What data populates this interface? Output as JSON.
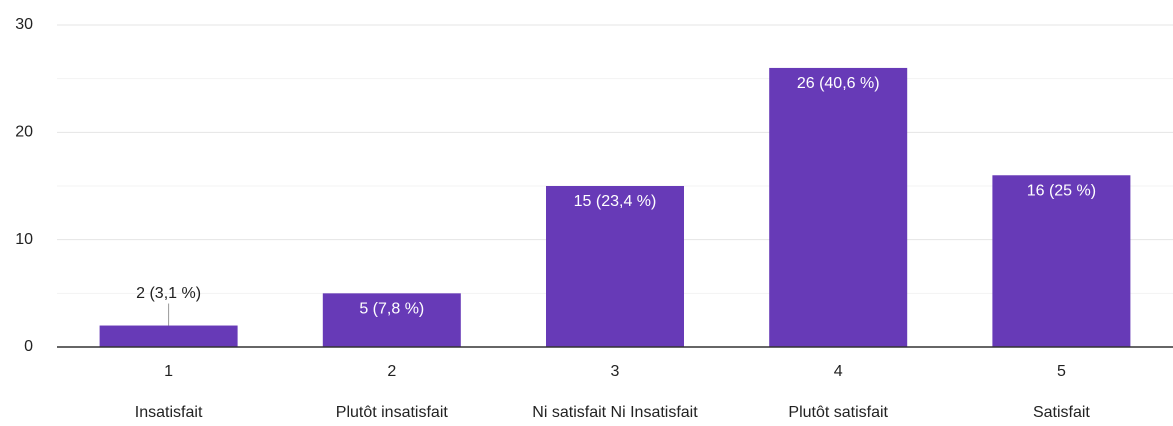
{
  "chart_data": {
    "type": "bar",
    "categories": [
      "1",
      "2",
      "3",
      "4",
      "5"
    ],
    "category_labels": [
      "Insatisfait",
      "Plutôt insatisfait",
      "Ni satisfait Ni Insatisfait",
      "Plutôt satisfait",
      "Satisfait"
    ],
    "values": [
      2,
      5,
      15,
      26,
      16
    ],
    "value_labels": [
      "2 (3,1 %)",
      "5 (7,8 %)",
      "15 (23,4 %)",
      "26 (40,6 %)",
      "16 (25 %)"
    ],
    "color": "#673ab7",
    "ylim": [
      0,
      30
    ],
    "yticks": [
      0,
      10,
      20,
      30
    ],
    "minor_yticks": [
      5,
      15,
      25
    ],
    "grid": true
  }
}
